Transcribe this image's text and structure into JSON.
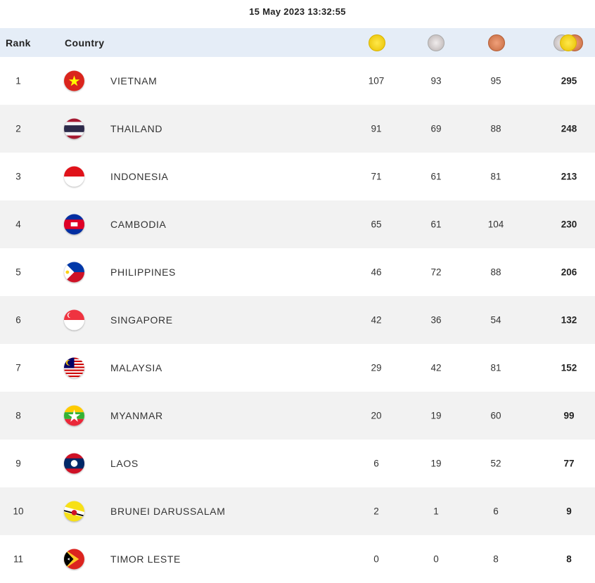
{
  "timestamp": "15 May 2023  13:32:55",
  "header": {
    "rank": "Rank",
    "country": "Country",
    "gold_icon": "gold-medal-icon",
    "silver_icon": "silver-medal-icon",
    "bronze_icon": "bronze-medal-icon",
    "total_icon": "total-medals-icon"
  },
  "rows": [
    {
      "rank": "1",
      "country": "VIETNAM",
      "flag": "vn",
      "gold": "107",
      "silver": "93",
      "bronze": "95",
      "total": "295"
    },
    {
      "rank": "2",
      "country": "THAILAND",
      "flag": "th",
      "gold": "91",
      "silver": "69",
      "bronze": "88",
      "total": "248"
    },
    {
      "rank": "3",
      "country": "INDONESIA",
      "flag": "id",
      "gold": "71",
      "silver": "61",
      "bronze": "81",
      "total": "213"
    },
    {
      "rank": "4",
      "country": "CAMBODIA",
      "flag": "kh",
      "gold": "65",
      "silver": "61",
      "bronze": "104",
      "total": "230"
    },
    {
      "rank": "5",
      "country": "PHILIPPINES",
      "flag": "ph",
      "gold": "46",
      "silver": "72",
      "bronze": "88",
      "total": "206"
    },
    {
      "rank": "6",
      "country": "SINGAPORE",
      "flag": "sg",
      "gold": "42",
      "silver": "36",
      "bronze": "54",
      "total": "132"
    },
    {
      "rank": "7",
      "country": "MALAYSIA",
      "flag": "my",
      "gold": "29",
      "silver": "42",
      "bronze": "81",
      "total": "152"
    },
    {
      "rank": "8",
      "country": "MYANMAR",
      "flag": "mm",
      "gold": "20",
      "silver": "19",
      "bronze": "60",
      "total": "99"
    },
    {
      "rank": "9",
      "country": "LAOS",
      "flag": "la",
      "gold": "6",
      "silver": "19",
      "bronze": "52",
      "total": "77"
    },
    {
      "rank": "10",
      "country": "BRUNEI DARUSSALAM",
      "flag": "bn",
      "gold": "2",
      "silver": "1",
      "bronze": "6",
      "total": "9"
    },
    {
      "rank": "11",
      "country": "TIMOR LESTE",
      "flag": "tl",
      "gold": "0",
      "silver": "0",
      "bronze": "8",
      "total": "8"
    }
  ]
}
